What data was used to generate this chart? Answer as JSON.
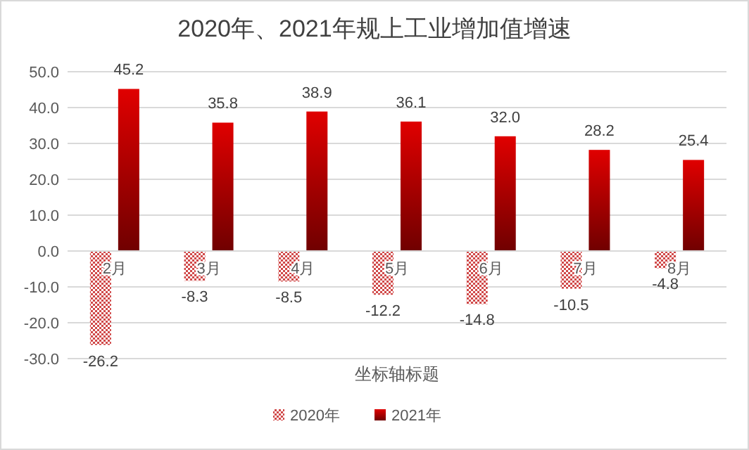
{
  "chart_data": {
    "type": "bar",
    "title": "2020年、2021年规上工业增加值增速",
    "xlabel": "坐标轴标题",
    "categories": [
      "2月",
      "3月",
      "4月",
      "5月",
      "6月",
      "7月",
      "8月"
    ],
    "series": [
      {
        "name": "2020年",
        "color": "#d04848",
        "values": [
          -26.2,
          -8.3,
          -8.5,
          -12.2,
          -14.8,
          -10.5,
          -4.8
        ],
        "value_labels": [
          "-26.2",
          "-8.3",
          "-8.5",
          "-12.2",
          "-14.8",
          "-10.5",
          "-4.8"
        ]
      },
      {
        "name": "2021年",
        "color": "#e00000",
        "values": [
          45.2,
          35.8,
          38.9,
          36.1,
          32.0,
          28.2,
          25.4
        ],
        "value_labels": [
          "45.2",
          "35.8",
          "38.9",
          "36.1",
          "32.0",
          "28.2",
          "25.4"
        ]
      }
    ],
    "ylim": [
      -30,
      50
    ],
    "yticks": [
      {
        "value": -30,
        "label": "-30.0"
      },
      {
        "value": -20,
        "label": "-20.0"
      },
      {
        "value": -10,
        "label": "-10.0"
      },
      {
        "value": 0,
        "label": "0.0"
      },
      {
        "value": 10,
        "label": "10.0"
      },
      {
        "value": 20,
        "label": "20.0"
      },
      {
        "value": 30,
        "label": "30.0"
      },
      {
        "value": 40,
        "label": "40.0"
      },
      {
        "value": 50,
        "label": "50.0"
      }
    ],
    "grid": "y",
    "legend": "bottom"
  }
}
